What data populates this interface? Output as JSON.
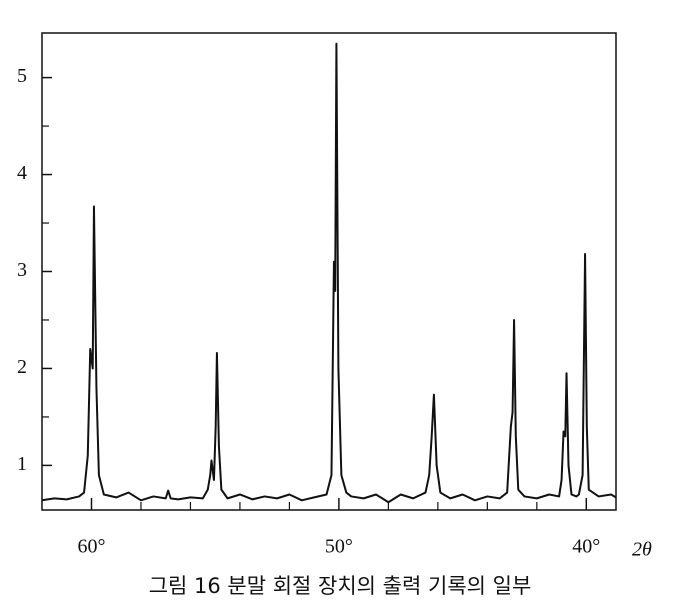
{
  "chart_data": {
    "type": "line",
    "caption": "그림 16  분말 회절 장치의 출력 기록의 일부",
    "xlabel": "2θ",
    "color": "#111111",
    "xlim": [
      62,
      38.8
    ],
    "ylim": [
      0.54,
      5.46
    ],
    "xticks": [
      {
        "value": 60,
        "label": "60°"
      },
      {
        "value": 50,
        "label": "50°"
      },
      {
        "value": 40,
        "label": "40°"
      }
    ],
    "xminorticks": [
      58,
      56,
      54,
      52,
      48,
      46,
      44,
      42
    ],
    "yticks": [
      1,
      2,
      3,
      4,
      5
    ],
    "yminorticks": [
      1.5,
      2.5,
      3.5,
      4.5
    ],
    "x": [
      62.0,
      61.5,
      61.0,
      60.5,
      60.3,
      60.15,
      60.05,
      59.95,
      59.9,
      59.8,
      59.7,
      59.5,
      59.0,
      58.5,
      58.0,
      57.5,
      57.0,
      56.9,
      56.8,
      56.5,
      56.0,
      55.5,
      55.3,
      55.2,
      55.15,
      55.05,
      54.98,
      54.93,
      54.85,
      54.75,
      54.5,
      54.0,
      53.5,
      53.0,
      52.5,
      52.0,
      51.5,
      51.0,
      50.5,
      50.3,
      50.2,
      50.15,
      50.1,
      50.02,
      49.9,
      49.7,
      49.5,
      49.0,
      48.5,
      48.0,
      47.5,
      47.0,
      46.5,
      46.35,
      46.25,
      46.16,
      46.05,
      45.9,
      45.5,
      45.0,
      44.5,
      44.0,
      43.5,
      43.2,
      43.05,
      42.98,
      42.92,
      42.85,
      42.75,
      42.5,
      42.0,
      41.5,
      41.1,
      41.0,
      40.92,
      40.85,
      40.8,
      40.72,
      40.6,
      40.4,
      40.3,
      40.15,
      40.05,
      39.98,
      39.9,
      39.5,
      39.0,
      38.8
    ],
    "values": [
      0.64,
      0.66,
      0.65,
      0.68,
      0.72,
      1.1,
      2.2,
      2.0,
      3.67,
      1.8,
      0.9,
      0.7,
      0.67,
      0.72,
      0.64,
      0.68,
      0.66,
      0.74,
      0.66,
      0.65,
      0.67,
      0.66,
      0.75,
      0.9,
      1.05,
      0.85,
      1.4,
      2.16,
      1.2,
      0.75,
      0.66,
      0.7,
      0.65,
      0.68,
      0.66,
      0.7,
      0.64,
      0.67,
      0.7,
      0.9,
      3.1,
      2.8,
      5.35,
      2.0,
      0.9,
      0.72,
      0.68,
      0.66,
      0.7,
      0.62,
      0.7,
      0.66,
      0.72,
      0.9,
      1.3,
      1.73,
      1.0,
      0.72,
      0.66,
      0.7,
      0.64,
      0.68,
      0.66,
      0.72,
      1.4,
      1.55,
      2.5,
      1.3,
      0.75,
      0.68,
      0.66,
      0.7,
      0.68,
      0.85,
      1.35,
      1.3,
      1.95,
      1.0,
      0.7,
      0.68,
      0.7,
      0.9,
      3.18,
      1.4,
      0.75,
      0.68,
      0.7,
      0.67
    ]
  }
}
